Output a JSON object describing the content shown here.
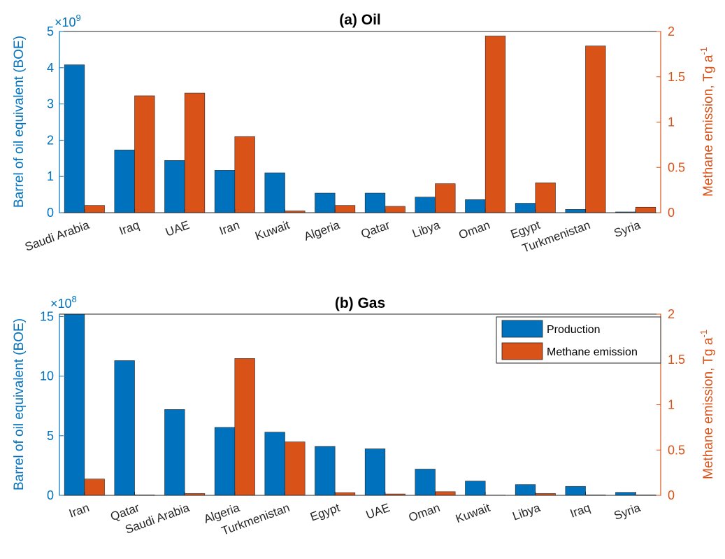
{
  "chart_data": [
    {
      "type": "bar",
      "title": "(a) Oil",
      "categories": [
        "Saudi Arabia",
        "Iraq",
        "UAE",
        "Iran",
        "Kuwait",
        "Algeria",
        "Qatar",
        "Libya",
        "Oman",
        "Egypt",
        "Turkmenistan",
        "Syria"
      ],
      "series": [
        {
          "name": "Production",
          "axis": "left",
          "values": [
            4080000000.0,
            1730000000.0,
            1440000000.0,
            1170000000.0,
            1100000000.0,
            540000000.0,
            540000000.0,
            430000000.0,
            360000000.0,
            260000000.0,
            90000000.0,
            20000000.0
          ]
        },
        {
          "name": "Methane emission",
          "axis": "right",
          "values": [
            0.08,
            1.29,
            1.32,
            0.84,
            0.02,
            0.08,
            0.07,
            0.32,
            1.95,
            0.33,
            1.84,
            0.06
          ]
        }
      ],
      "ylabel": "Barrel of oil equivalent (BOE)",
      "ylabel_right": "Methane emission, Tg a",
      "ylabel_right_superscript": "-1",
      "exponent_label": "×10",
      "exponent_power": "9",
      "ylim": [
        0,
        5000000000.0
      ],
      "ylim_right": [
        0,
        2
      ],
      "yticks": [
        0,
        1,
        2,
        3,
        4,
        5
      ],
      "yticks_right": [
        "0",
        "0.5",
        "1",
        "1.5",
        "2"
      ],
      "colors": {
        "production": "#0072BD",
        "methane": "#D95319"
      },
      "grid": false,
      "legend": "none"
    },
    {
      "type": "bar",
      "title": "(b) Gas",
      "categories": [
        "Iran",
        "Qatar",
        "Saudi Arabia",
        "Algeria",
        "Turkmenistan",
        "Egypt",
        "UAE",
        "Oman",
        "Kuwait",
        "Libya",
        "Iraq",
        "Syria"
      ],
      "series": [
        {
          "name": "Production",
          "axis": "left",
          "values": [
            1520000000.0,
            1130000000.0,
            720000000.0,
            570000000.0,
            530000000.0,
            410000000.0,
            390000000.0,
            220000000.0,
            120000000.0,
            90000000.0,
            75000000.0,
            25000000.0
          ]
        },
        {
          "name": "Methane emission",
          "axis": "right",
          "values": [
            0.18,
            0.005,
            0.02,
            1.51,
            0.59,
            0.03,
            0.015,
            0.04,
            0.003,
            0.02,
            0.005,
            0.005
          ]
        }
      ],
      "ylabel": "Barrel of oil equivalent (BOE)",
      "ylabel_right": "Methane emission, Tg a",
      "ylabel_right_superscript": "-1",
      "exponent_label": "×10",
      "exponent_power": "8",
      "ylim": [
        0,
        1520000000.0
      ],
      "ylim_right": [
        0,
        2
      ],
      "yticks": [
        0,
        5,
        10,
        15
      ],
      "yticks_right": [
        "0",
        "0.5",
        "1",
        "1.5",
        "2"
      ],
      "colors": {
        "production": "#0072BD",
        "methane": "#D95319"
      },
      "grid": false,
      "legend": "top-right",
      "legend_entries": [
        "Production",
        "Methane emission"
      ]
    }
  ]
}
